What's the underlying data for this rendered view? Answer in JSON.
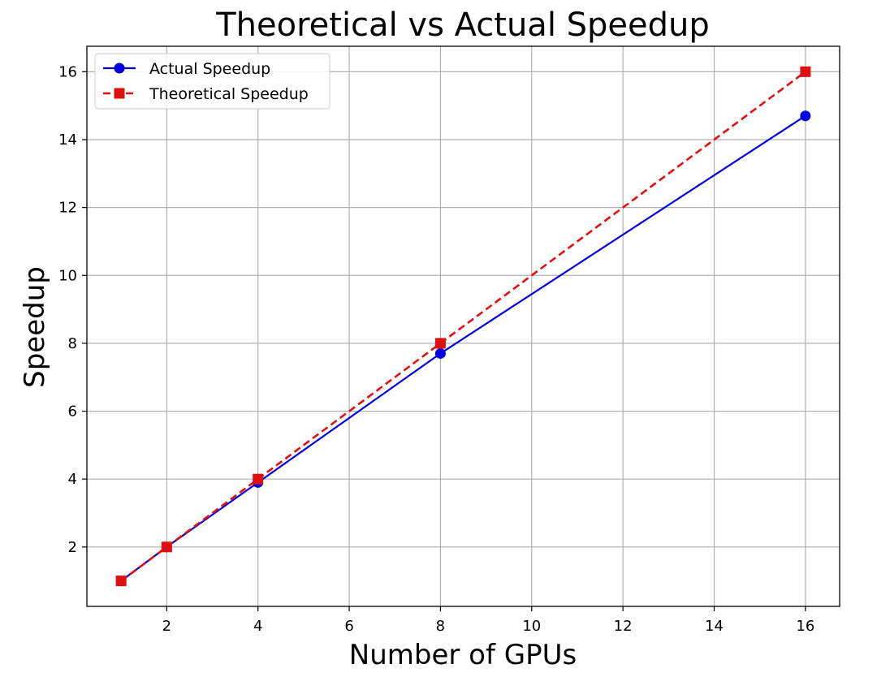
{
  "chart_data": {
    "type": "line",
    "title": "Theoretical vs Actual Speedup",
    "xlabel": "Number of GPUs",
    "ylabel": "Speedup",
    "x": [
      1,
      2,
      4,
      8,
      16
    ],
    "series": [
      {
        "name": "Actual Speedup",
        "values": [
          1,
          2,
          3.9,
          7.7,
          14.7
        ],
        "color": "#0000dd",
        "line_style": "solid",
        "marker": "circle"
      },
      {
        "name": "Theoretical Speedup",
        "values": [
          1,
          2,
          4,
          8,
          16
        ],
        "color": "#dd1111",
        "line_style": "dashed",
        "marker": "square"
      }
    ],
    "xlim": [
      0.25,
      16.75
    ],
    "ylim": [
      0.25,
      16.75
    ],
    "xticks": [
      "2",
      "4",
      "6",
      "8",
      "10",
      "12",
      "14",
      "16"
    ],
    "yticks": [
      "2",
      "4",
      "6",
      "8",
      "10",
      "12",
      "14",
      "16"
    ],
    "grid": true,
    "legend_position": "top-left"
  }
}
